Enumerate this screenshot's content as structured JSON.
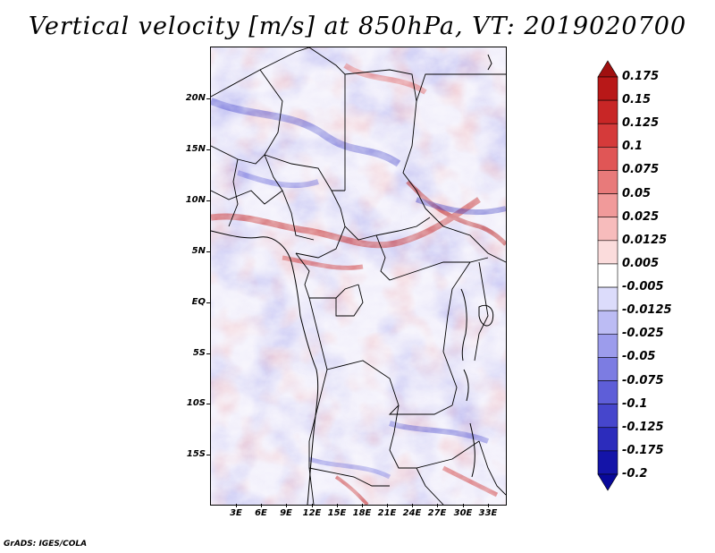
{
  "title": "Vertical velocity [m/s] at 850hPa, VT: 2019020700",
  "credit": "GrADS: IGES/COLA",
  "map": {
    "region": "Central Africa",
    "lat_labels": [
      "20N",
      "15N",
      "10N",
      "5N",
      "EQ",
      "5S",
      "10S",
      "15S"
    ],
    "lon_labels": [
      "3E",
      "6E",
      "9E",
      "12E",
      "15E",
      "18E",
      "21E",
      "24E",
      "27E",
      "30E",
      "33E"
    ]
  },
  "colorbar": {
    "labels": [
      "0.175",
      "0.15",
      "0.125",
      "0.1",
      "0.075",
      "0.05",
      "0.025",
      "0.0125",
      "0.005",
      "-0.005",
      "-0.0125",
      "-0.025",
      "-0.05",
      "-0.075",
      "-0.1",
      "-0.125",
      "-0.175",
      "-0.2"
    ],
    "colors": [
      "#a01010",
      "#b81818",
      "#c82626",
      "#d53a3a",
      "#e05656",
      "#e87a7a",
      "#f19a9a",
      "#f7bcbc",
      "#fbdcdc",
      "#ffffff",
      "#dcdcfb",
      "#bcbcf4",
      "#9c9cec",
      "#7c7ce2",
      "#5e5ed8",
      "#4646cc",
      "#2c2cbc",
      "#1414a8",
      "#08089a"
    ]
  },
  "colors": {
    "positive": "#d03a3a",
    "negative": "#5a5ad8",
    "borders": "#000000"
  }
}
